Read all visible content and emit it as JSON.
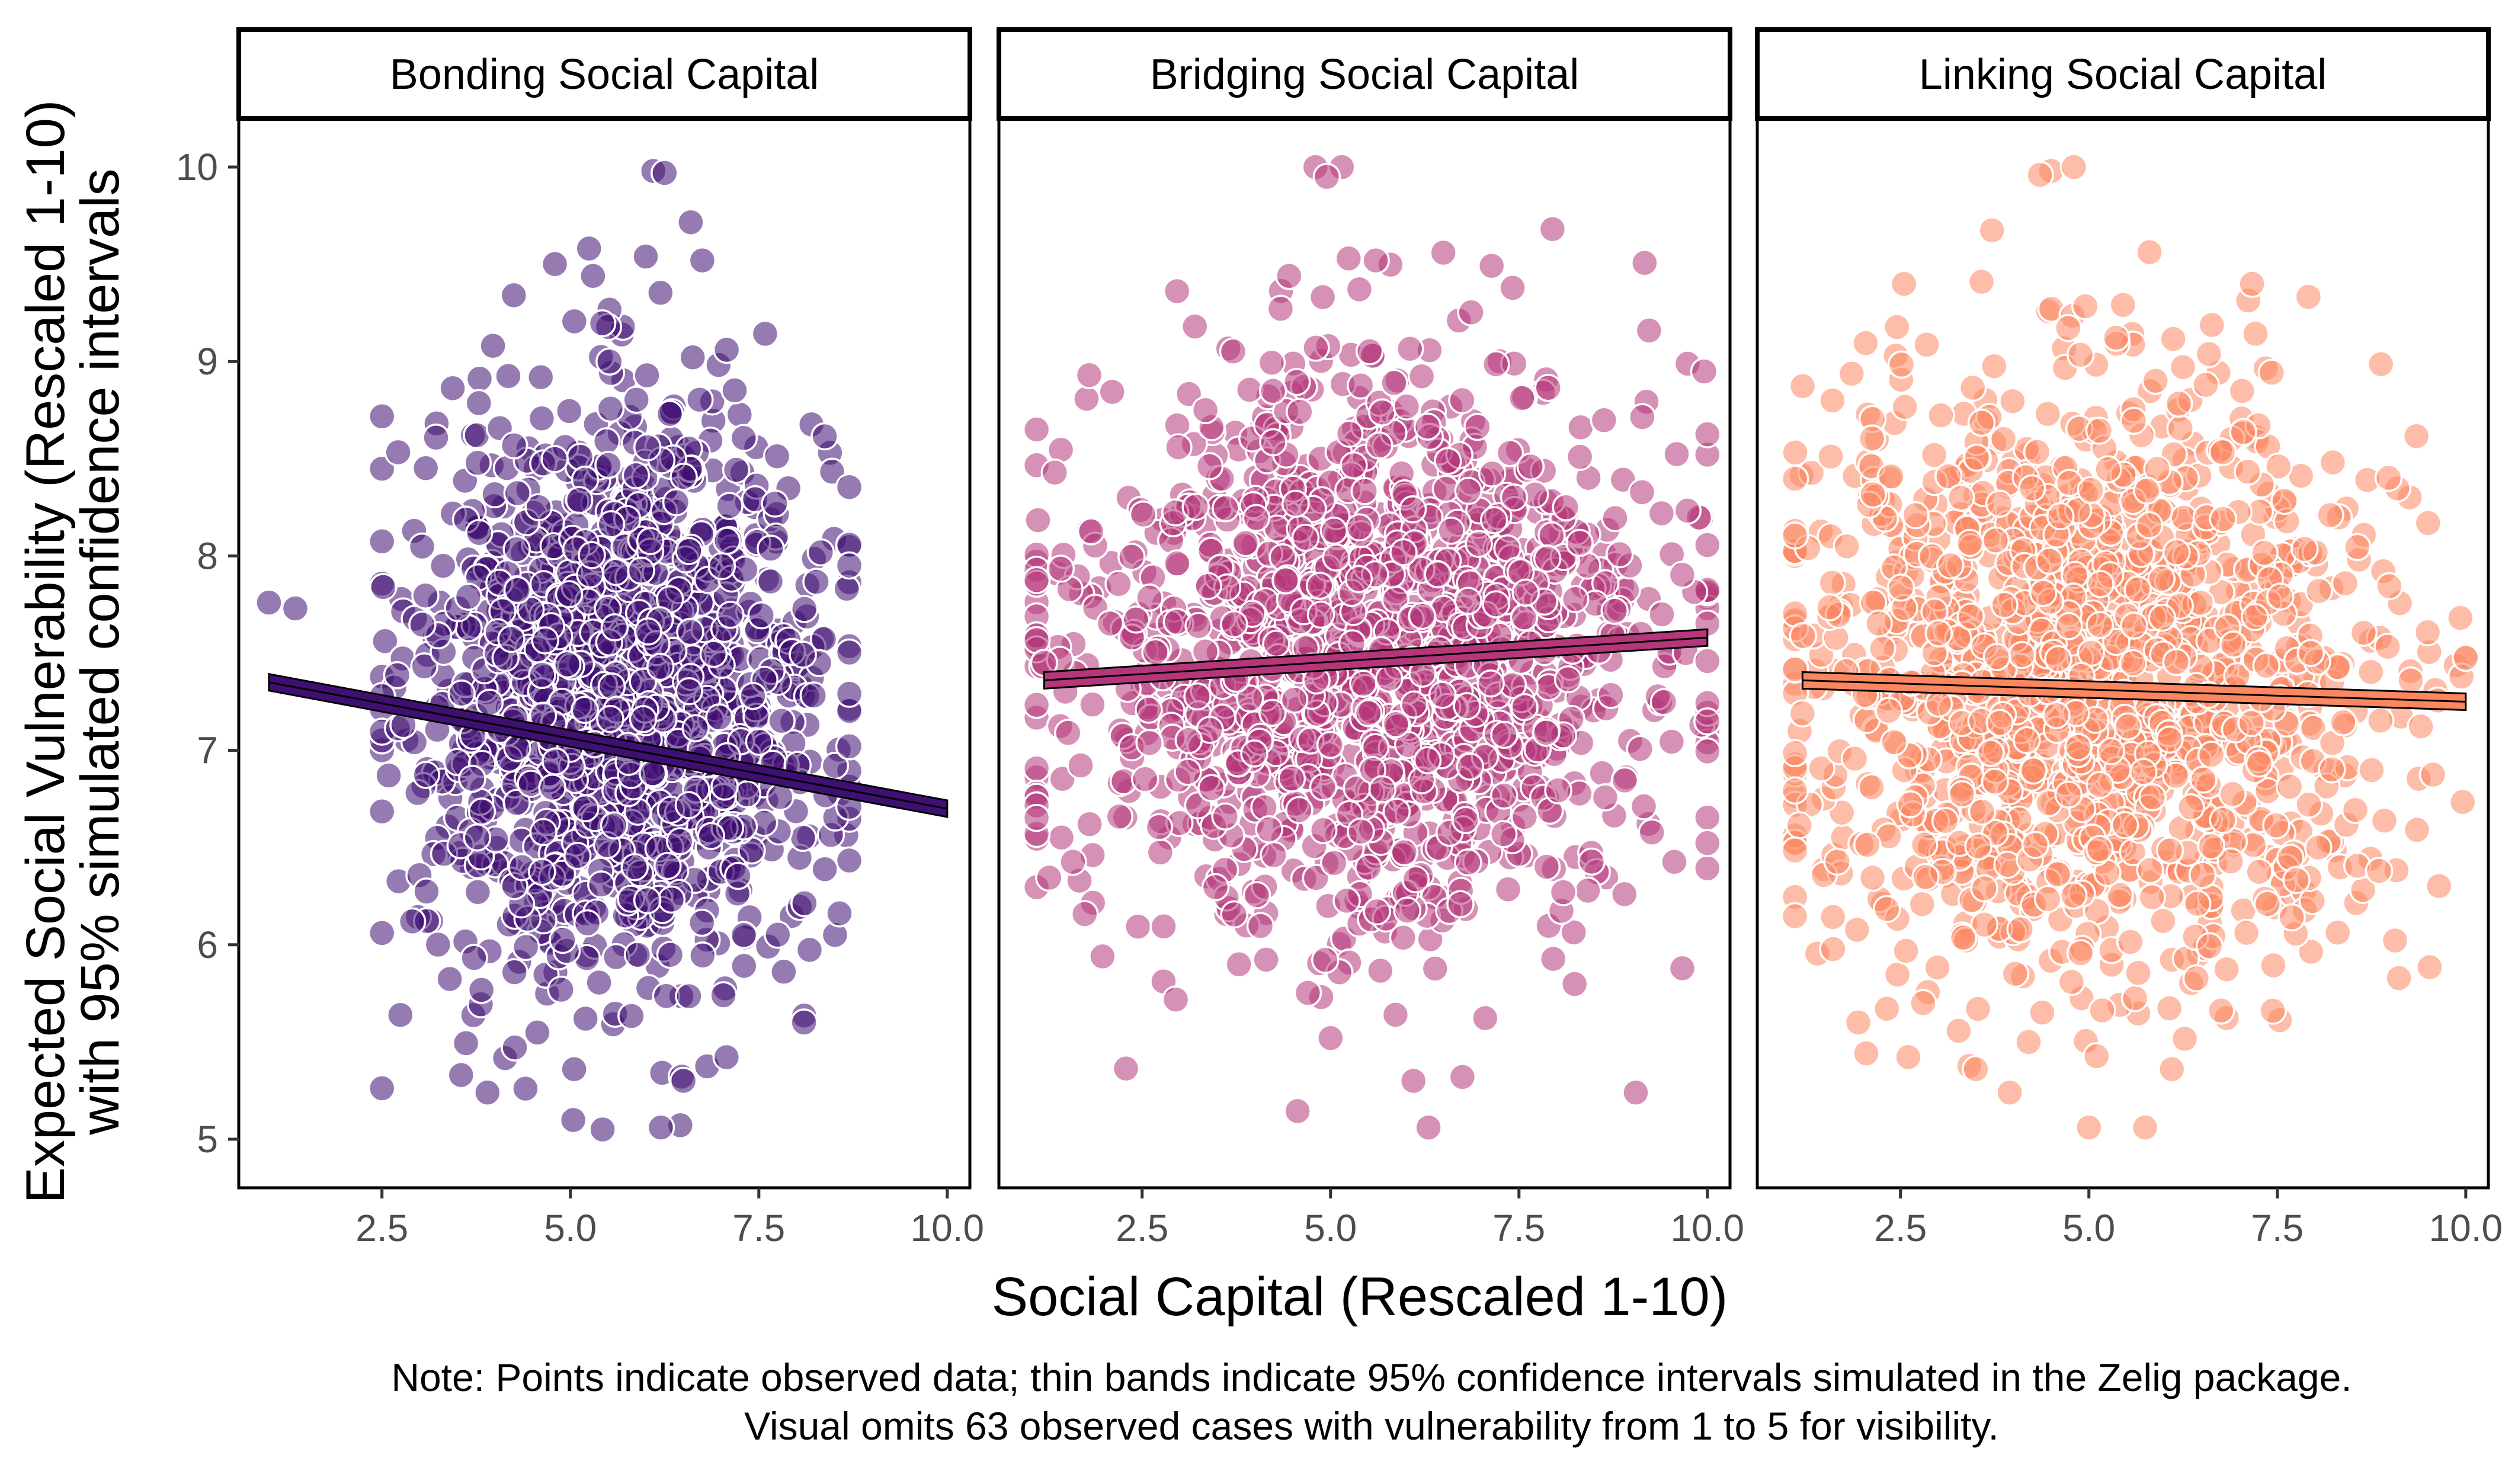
{
  "chart_data": {
    "type": "scatter",
    "facet_by": "social capital type",
    "panels": [
      "Bonding Social Capital",
      "Bridging Social Capital",
      "Linking Social Capital"
    ],
    "xlabel": "Social Capital (Rescaled 1-10)",
    "ylabel_lines": [
      "Expected Social Vulnerability (Rescaled 1-10)",
      "with 95% simulated confidence intervals"
    ],
    "xlim": [
      0.6,
      10.3
    ],
    "ylim": [
      4.75,
      10.25
    ],
    "x_ticks": [
      2.5,
      5.0,
      7.5,
      10.0
    ],
    "x_tick_labels": [
      "2.5",
      "5.0",
      "7.5",
      "10.0"
    ],
    "y_ticks": [
      5,
      6,
      7,
      8,
      9,
      10
    ],
    "y_tick_labels": [
      "5",
      "6",
      "7",
      "8",
      "9",
      "10"
    ],
    "grid": false,
    "legend": "none",
    "series": [
      {
        "panel": "Bonding Social Capital",
        "color": "#3f0f72",
        "fit_line": {
          "x": [
            1.0,
            10.0
          ],
          "y": [
            7.35,
            6.7
          ]
        },
        "point_cloud": {
          "x_range": [
            2.5,
            8.7
          ],
          "y_range": [
            5.05,
            10.0
          ],
          "center": [
            5.7,
            7.3
          ],
          "n": 1500
        },
        "notable_points": [
          {
            "x": 1.0,
            "y": 7.76
          },
          {
            "x": 1.35,
            "y": 7.73
          },
          {
            "x": 2.9,
            "y": 6.12
          },
          {
            "x": 3.55,
            "y": 5.33
          },
          {
            "x": 3.9,
            "y": 5.24
          },
          {
            "x": 5.05,
            "y": 5.36
          },
          {
            "x": 6.2,
            "y": 5.06
          },
          {
            "x": 6.5,
            "y": 5.3
          },
          {
            "x": 6.1,
            "y": 9.98
          },
          {
            "x": 6.25,
            "y": 9.97
          },
          {
            "x": 6.0,
            "y": 9.54
          },
          {
            "x": 6.75,
            "y": 9.52
          },
          {
            "x": 5.3,
            "y": 9.44
          },
          {
            "x": 8.1,
            "y": 5.6
          },
          {
            "x": 5.2,
            "y": 5.62
          }
        ]
      },
      {
        "panel": "Bridging Social Capital",
        "color": "#b5367a",
        "fit_line": {
          "x": [
            1.2,
            10.0
          ],
          "y": [
            7.36,
            7.58
          ]
        },
        "point_cloud": {
          "x_range": [
            1.1,
            10.0
          ],
          "y_range": [
            5.06,
            10.0
          ],
          "center": [
            5.5,
            7.5
          ],
          "n": 1500
        },
        "notable_points": [
          {
            "x": 1.2,
            "y": 7.45
          },
          {
            "x": 4.8,
            "y": 10.0
          },
          {
            "x": 5.15,
            "y": 10.0
          },
          {
            "x": 4.95,
            "y": 9.95
          },
          {
            "x": 6.3,
            "y": 5.06
          },
          {
            "x": 9.05,
            "y": 5.24
          },
          {
            "x": 6.1,
            "y": 5.3
          },
          {
            "x": 6.75,
            "y": 5.32
          },
          {
            "x": 3.2,
            "y": 9.18
          },
          {
            "x": 4.45,
            "y": 9.44
          },
          {
            "x": 5.6,
            "y": 9.52
          },
          {
            "x": 5.0,
            "y": 5.52
          }
        ]
      },
      {
        "panel": "Linking Social Capital",
        "color": "#fb8760",
        "fit_line": {
          "x": [
            1.2,
            10.0
          ],
          "y": [
            7.36,
            7.25
          ]
        },
        "point_cloud": {
          "x_range": [
            1.1,
            10.0
          ],
          "y_range": [
            5.06,
            10.0
          ],
          "center": [
            5.0,
            7.4
          ],
          "n": 1500
        },
        "notable_points": [
          {
            "x": 1.2,
            "y": 7.19
          },
          {
            "x": 4.5,
            "y": 9.98
          },
          {
            "x": 4.8,
            "y": 10.0
          },
          {
            "x": 4.35,
            "y": 9.96
          },
          {
            "x": 5.0,
            "y": 5.06
          },
          {
            "x": 3.5,
            "y": 5.36
          },
          {
            "x": 3.95,
            "y": 5.24
          },
          {
            "x": 4.2,
            "y": 5.5
          },
          {
            "x": 6.1,
            "y": 5.36
          },
          {
            "x": 6.55,
            "y": 8.88
          },
          {
            "x": 2.8,
            "y": 5.7
          },
          {
            "x": 8.85,
            "y": 6.38
          }
        ]
      }
    ],
    "note_lines": [
      "Note: Points indicate observed data; thin bands indicate 95% confidence intervals simulated in the Zelig package.",
      "Visual omits 63 observed cases with vulnerability from 1 to 5 for visibility."
    ]
  }
}
